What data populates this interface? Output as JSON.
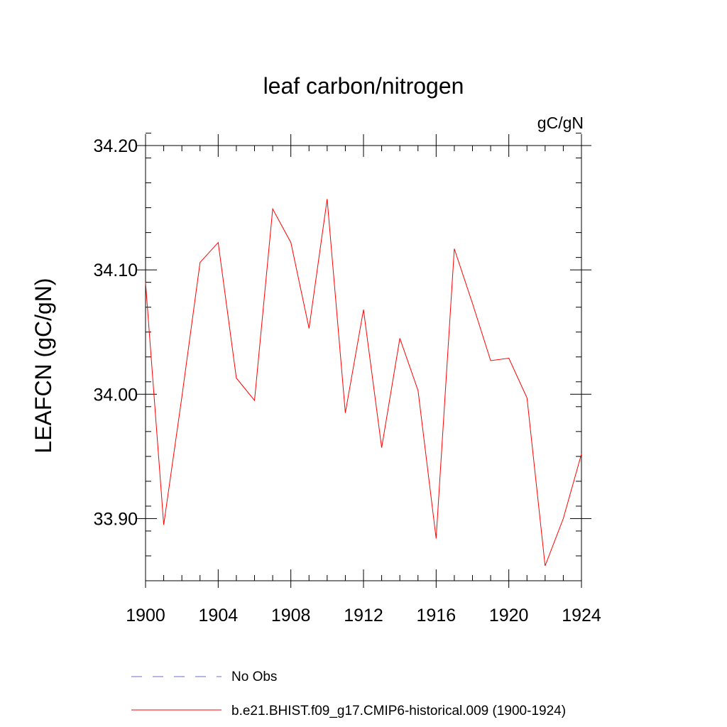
{
  "chart_data": {
    "type": "line",
    "title": "leaf carbon/nitrogen",
    "units": "gC/gN",
    "ylabel": "LEAFCN  (gC/gN)",
    "xlabel": "",
    "xlim": [
      1900,
      1924
    ],
    "ylim": [
      33.85,
      34.2
    ],
    "x_ticks": [
      1900,
      1904,
      1908,
      1912,
      1916,
      1920,
      1924
    ],
    "x_tick_labels": [
      "1900",
      "1904",
      "1908",
      "1912",
      "1916",
      "1920",
      "1924"
    ],
    "y_ticks": [
      33.9,
      34.0,
      34.1,
      34.2
    ],
    "y_tick_labels": [
      "33.90",
      "34.00",
      "34.10",
      "34.20"
    ],
    "series": [
      {
        "name": "b.e21.BHIST.f09_g17.CMIP6-historical.009 (1900-1924)",
        "color": "#ff0000",
        "style": "solid",
        "x": [
          1900,
          1901,
          1902,
          1903,
          1904,
          1905,
          1906,
          1907,
          1908,
          1909,
          1910,
          1911,
          1912,
          1913,
          1914,
          1915,
          1916,
          1917,
          1918,
          1919,
          1920,
          1921,
          1922,
          1923,
          1924
        ],
        "values": [
          34.09,
          33.895,
          33.998,
          34.106,
          34.122,
          34.013,
          33.995,
          34.149,
          34.122,
          34.053,
          34.157,
          33.985,
          34.068,
          33.957,
          34.045,
          34.003,
          33.884,
          34.117,
          34.073,
          34.027,
          34.029,
          33.997,
          33.862,
          33.9,
          33.952
        ]
      }
    ],
    "legend": [
      {
        "label": "No Obs",
        "color": "#6b6bd6",
        "style": "dashed"
      },
      {
        "label": "b.e21.BHIST.f09_g17.CMIP6-historical.009 (1900-1924)",
        "color": "#ff0000",
        "style": "solid"
      }
    ],
    "legend_position": "bottom"
  }
}
